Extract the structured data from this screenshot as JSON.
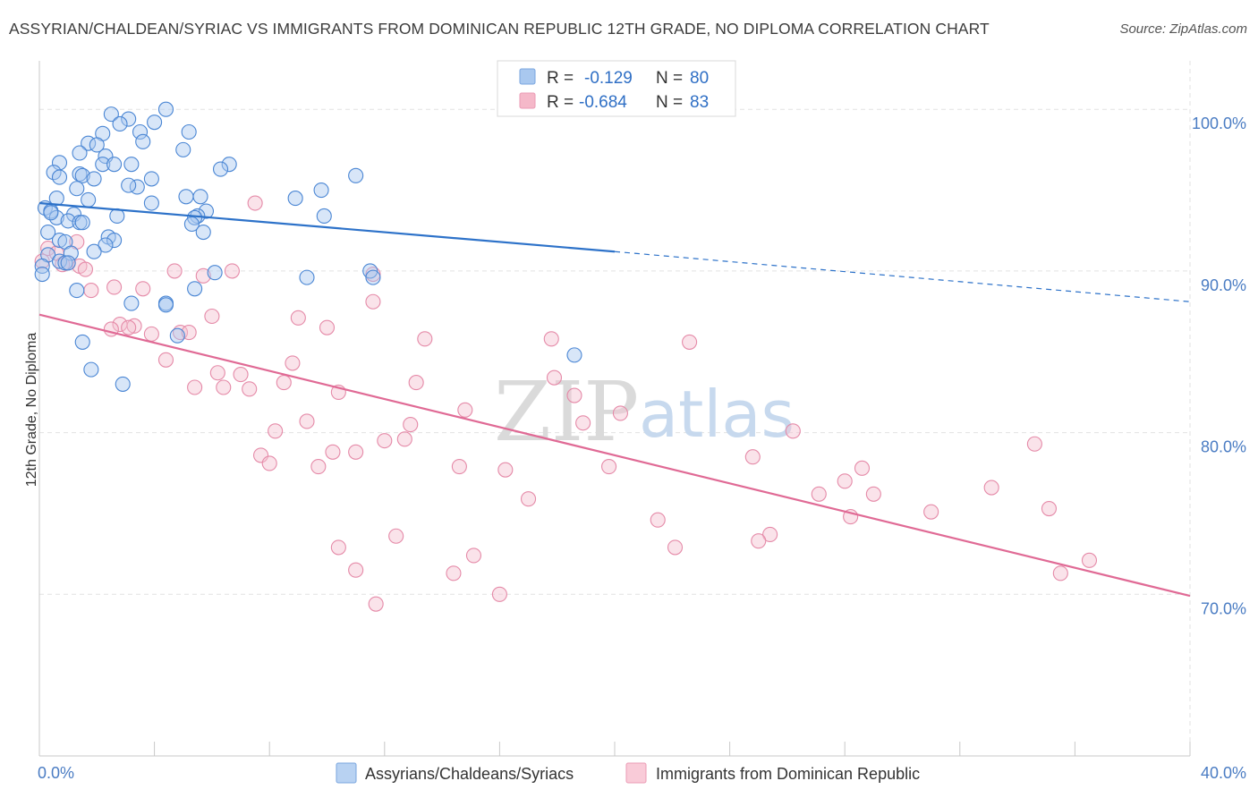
{
  "header": {
    "title": "ASSYRIAN/CHALDEAN/SYRIAC VS IMMIGRANTS FROM DOMINICAN REPUBLIC 12TH GRADE, NO DIPLOMA CORRELATION CHART",
    "source": "Source: ZipAtlas.com"
  },
  "watermark": {
    "zip": "ZIP",
    "atlas": "atlas"
  },
  "legend_top": {
    "r_label": "R =",
    "n_label": "N =",
    "rows": [
      {
        "r": "-0.129",
        "n": "80",
        "color": "#a9c8ef"
      },
      {
        "r": "-0.684",
        "n": "83",
        "color": "#f5b8c9"
      }
    ]
  },
  "colors": {
    "blue": "#4a86d4",
    "blue_line": "#2d72c9",
    "pink": "#e87ea0",
    "pink_line": "#e06a95"
  },
  "chart_data": {
    "type": "scatter",
    "xlabel": "",
    "ylabel": "12th Grade, No Diploma",
    "xlim": [
      0,
      40
    ],
    "ylim": [
      60,
      103
    ],
    "x_ticks": [
      0,
      4,
      8,
      12,
      16,
      20,
      24,
      28,
      32,
      36,
      40
    ],
    "x_tick_labels": {
      "0": "0.0%",
      "40": "40.0%"
    },
    "y_ticks": [
      70,
      80,
      90,
      100
    ],
    "y_tick_labels": [
      "70.0%",
      "80.0%",
      "90.0%",
      "100.0%"
    ],
    "grid": true,
    "legend_position": "top-center",
    "series": [
      {
        "name": "Assyrians/Chaldeans/Syriacs",
        "r": -0.129,
        "n": 80,
        "trend": {
          "x0": 0,
          "y0": 94.2,
          "x1": 20,
          "y1": 91.2,
          "dashed_to_x": 40,
          "dashed_to_y": 88.1
        },
        "points": [
          [
            2.5,
            99.7
          ],
          [
            3.1,
            99.4
          ],
          [
            4.4,
            100.0
          ],
          [
            2.8,
            99.1
          ],
          [
            4.0,
            99.2
          ],
          [
            3.5,
            98.6
          ],
          [
            2.2,
            98.5
          ],
          [
            1.7,
            97.9
          ],
          [
            3.6,
            98.0
          ],
          [
            5.2,
            98.6
          ],
          [
            2.0,
            97.8
          ],
          [
            1.4,
            97.3
          ],
          [
            2.3,
            97.1
          ],
          [
            5.0,
            97.5
          ],
          [
            0.7,
            96.7
          ],
          [
            0.5,
            96.1
          ],
          [
            2.2,
            96.6
          ],
          [
            2.6,
            96.6
          ],
          [
            3.2,
            96.6
          ],
          [
            6.6,
            96.6
          ],
          [
            6.3,
            96.3
          ],
          [
            1.4,
            96.0
          ],
          [
            1.5,
            95.9
          ],
          [
            0.7,
            95.8
          ],
          [
            1.9,
            95.7
          ],
          [
            3.9,
            95.7
          ],
          [
            11.0,
            95.9
          ],
          [
            3.4,
            95.2
          ],
          [
            1.3,
            95.1
          ],
          [
            9.8,
            95.0
          ],
          [
            0.6,
            94.5
          ],
          [
            1.7,
            94.4
          ],
          [
            8.9,
            94.5
          ],
          [
            5.1,
            94.6
          ],
          [
            5.6,
            94.6
          ],
          [
            3.9,
            94.2
          ],
          [
            0.2,
            93.9
          ],
          [
            0.4,
            93.7
          ],
          [
            1.2,
            93.5
          ],
          [
            0.6,
            93.3
          ],
          [
            2.7,
            93.4
          ],
          [
            5.8,
            93.7
          ],
          [
            5.5,
            93.4
          ],
          [
            9.9,
            93.4
          ],
          [
            5.4,
            93.3
          ],
          [
            1.0,
            93.1
          ],
          [
            1.4,
            93.0
          ],
          [
            1.5,
            93.0
          ],
          [
            5.3,
            92.9
          ],
          [
            0.3,
            92.4
          ],
          [
            5.7,
            92.4
          ],
          [
            2.4,
            92.1
          ],
          [
            2.6,
            91.9
          ],
          [
            0.7,
            91.9
          ],
          [
            0.9,
            91.8
          ],
          [
            2.3,
            91.6
          ],
          [
            1.1,
            91.1
          ],
          [
            1.9,
            91.2
          ],
          [
            0.3,
            91.0
          ],
          [
            0.7,
            90.6
          ],
          [
            0.9,
            90.5
          ],
          [
            1.0,
            90.5
          ],
          [
            0.1,
            90.3
          ],
          [
            0.1,
            89.8
          ],
          [
            6.1,
            89.9
          ],
          [
            11.5,
            90.0
          ],
          [
            9.3,
            89.6
          ],
          [
            11.6,
            89.6
          ],
          [
            1.3,
            88.8
          ],
          [
            5.4,
            88.9
          ],
          [
            3.2,
            88.0
          ],
          [
            4.4,
            88.0
          ],
          [
            4.4,
            87.9
          ],
          [
            4.8,
            86.0
          ],
          [
            1.5,
            85.6
          ],
          [
            18.6,
            84.8
          ],
          [
            1.8,
            83.9
          ],
          [
            2.9,
            83.0
          ],
          [
            0.4,
            93.6
          ],
          [
            3.1,
            95.3
          ]
        ]
      },
      {
        "name": "Immigrants from Dominican Republic",
        "r": -0.684,
        "n": 83,
        "trend": {
          "x0": 0,
          "y0": 87.3,
          "x1": 40,
          "y1": 69.9
        },
        "points": [
          [
            0.3,
            91.4
          ],
          [
            0.6,
            91.1
          ],
          [
            1.3,
            91.8
          ],
          [
            0.1,
            90.6
          ],
          [
            1.0,
            90.5
          ],
          [
            1.4,
            90.3
          ],
          [
            1.6,
            90.1
          ],
          [
            0.8,
            90.4
          ],
          [
            4.7,
            90.0
          ],
          [
            5.7,
            89.7
          ],
          [
            6.7,
            90.0
          ],
          [
            11.6,
            89.8
          ],
          [
            7.5,
            94.2
          ],
          [
            2.6,
            89.0
          ],
          [
            1.8,
            88.8
          ],
          [
            3.6,
            88.9
          ],
          [
            11.6,
            88.1
          ],
          [
            6.0,
            87.2
          ],
          [
            9.0,
            87.1
          ],
          [
            2.8,
            86.7
          ],
          [
            3.3,
            86.6
          ],
          [
            3.1,
            86.5
          ],
          [
            2.5,
            86.4
          ],
          [
            10.0,
            86.5
          ],
          [
            3.9,
            86.1
          ],
          [
            4.9,
            86.2
          ],
          [
            5.2,
            86.2
          ],
          [
            13.4,
            85.8
          ],
          [
            17.8,
            85.8
          ],
          [
            22.6,
            85.6
          ],
          [
            4.4,
            84.5
          ],
          [
            8.8,
            84.3
          ],
          [
            6.2,
            83.7
          ],
          [
            7.0,
            83.6
          ],
          [
            17.9,
            83.4
          ],
          [
            8.5,
            83.1
          ],
          [
            13.1,
            83.1
          ],
          [
            5.4,
            82.8
          ],
          [
            6.4,
            82.8
          ],
          [
            7.3,
            82.7
          ],
          [
            10.4,
            82.5
          ],
          [
            18.6,
            82.3
          ],
          [
            14.8,
            81.4
          ],
          [
            20.2,
            81.2
          ],
          [
            9.3,
            80.7
          ],
          [
            18.9,
            80.6
          ],
          [
            12.9,
            80.5
          ],
          [
            8.2,
            80.1
          ],
          [
            26.2,
            80.1
          ],
          [
            12.0,
            79.5
          ],
          [
            12.7,
            79.6
          ],
          [
            34.6,
            79.3
          ],
          [
            10.2,
            78.8
          ],
          [
            11.0,
            78.8
          ],
          [
            7.7,
            78.6
          ],
          [
            24.8,
            78.5
          ],
          [
            8.0,
            78.1
          ],
          [
            9.7,
            77.9
          ],
          [
            14.6,
            77.9
          ],
          [
            16.2,
            77.7
          ],
          [
            19.8,
            77.9
          ],
          [
            28.6,
            77.8
          ],
          [
            28.0,
            77.0
          ],
          [
            27.1,
            76.2
          ],
          [
            29.0,
            76.2
          ],
          [
            33.1,
            76.6
          ],
          [
            17.0,
            75.9
          ],
          [
            31.0,
            75.1
          ],
          [
            35.1,
            75.3
          ],
          [
            21.5,
            74.6
          ],
          [
            28.2,
            74.8
          ],
          [
            12.4,
            73.6
          ],
          [
            25.4,
            73.7
          ],
          [
            25.0,
            73.3
          ],
          [
            10.4,
            72.9
          ],
          [
            15.1,
            72.4
          ],
          [
            22.1,
            72.9
          ],
          [
            36.5,
            72.1
          ],
          [
            11.0,
            71.5
          ],
          [
            14.4,
            71.3
          ],
          [
            35.5,
            71.3
          ],
          [
            16.0,
            70.0
          ],
          [
            11.7,
            69.4
          ]
        ]
      }
    ]
  }
}
